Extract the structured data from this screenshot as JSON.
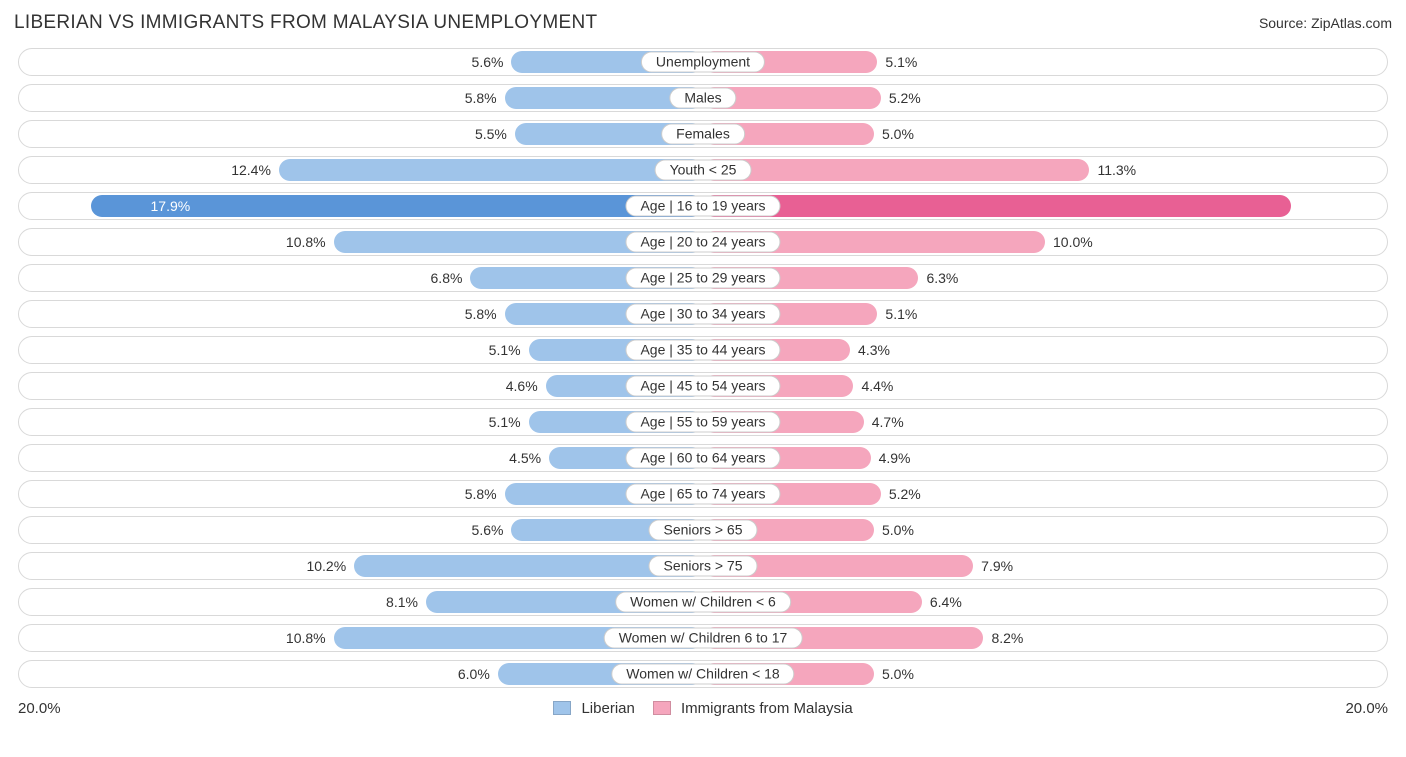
{
  "title": "LIBERIAN VS IMMIGRANTS FROM MALAYSIA UNEMPLOYMENT",
  "source": "Source: ZipAtlas.com",
  "chart": {
    "type": "diverging-bar",
    "axis_max_pct": 20.0,
    "axis_label_left": "20.0%",
    "axis_label_right": "20.0%",
    "track_border_color": "#d9d9d9",
    "track_bg": "#ffffff",
    "left": {
      "name": "Liberian",
      "light": "#9fc4ea",
      "dark": "#5a95d8"
    },
    "right": {
      "name": "Immigrants from Malaysia",
      "light": "#f5a6bd",
      "dark": "#e86094"
    },
    "label_fontsize": 14,
    "rows": [
      {
        "label": "Unemployment",
        "l": 5.6,
        "r": 5.1,
        "lt": "5.6%",
        "rt": "5.1%"
      },
      {
        "label": "Males",
        "l": 5.8,
        "r": 5.2,
        "lt": "5.8%",
        "rt": "5.2%"
      },
      {
        "label": "Females",
        "l": 5.5,
        "r": 5.0,
        "lt": "5.5%",
        "rt": "5.0%"
      },
      {
        "label": "Youth < 25",
        "l": 12.4,
        "r": 11.3,
        "lt": "12.4%",
        "rt": "11.3%"
      },
      {
        "label": "Age | 16 to 19 years",
        "l": 17.9,
        "r": 17.2,
        "lt": "17.9%",
        "rt": "17.2%",
        "hl": true
      },
      {
        "label": "Age | 20 to 24 years",
        "l": 10.8,
        "r": 10.0,
        "lt": "10.8%",
        "rt": "10.0%"
      },
      {
        "label": "Age | 25 to 29 years",
        "l": 6.8,
        "r": 6.3,
        "lt": "6.8%",
        "rt": "6.3%"
      },
      {
        "label": "Age | 30 to 34 years",
        "l": 5.8,
        "r": 5.1,
        "lt": "5.8%",
        "rt": "5.1%"
      },
      {
        "label": "Age | 35 to 44 years",
        "l": 5.1,
        "r": 4.3,
        "lt": "5.1%",
        "rt": "4.3%"
      },
      {
        "label": "Age | 45 to 54 years",
        "l": 4.6,
        "r": 4.4,
        "lt": "4.6%",
        "rt": "4.4%"
      },
      {
        "label": "Age | 55 to 59 years",
        "l": 5.1,
        "r": 4.7,
        "lt": "5.1%",
        "rt": "4.7%"
      },
      {
        "label": "Age | 60 to 64 years",
        "l": 4.5,
        "r": 4.9,
        "lt": "4.5%",
        "rt": "4.9%"
      },
      {
        "label": "Age | 65 to 74 years",
        "l": 5.8,
        "r": 5.2,
        "lt": "5.8%",
        "rt": "5.2%"
      },
      {
        "label": "Seniors > 65",
        "l": 5.6,
        "r": 5.0,
        "lt": "5.6%",
        "rt": "5.0%"
      },
      {
        "label": "Seniors > 75",
        "l": 10.2,
        "r": 7.9,
        "lt": "10.2%",
        "rt": "7.9%"
      },
      {
        "label": "Women w/ Children < 6",
        "l": 8.1,
        "r": 6.4,
        "lt": "8.1%",
        "rt": "6.4%"
      },
      {
        "label": "Women w/ Children 6 to 17",
        "l": 10.8,
        "r": 8.2,
        "lt": "10.8%",
        "rt": "8.2%"
      },
      {
        "label": "Women w/ Children < 18",
        "l": 6.0,
        "r": 5.0,
        "lt": "6.0%",
        "rt": "5.0%"
      }
    ]
  }
}
